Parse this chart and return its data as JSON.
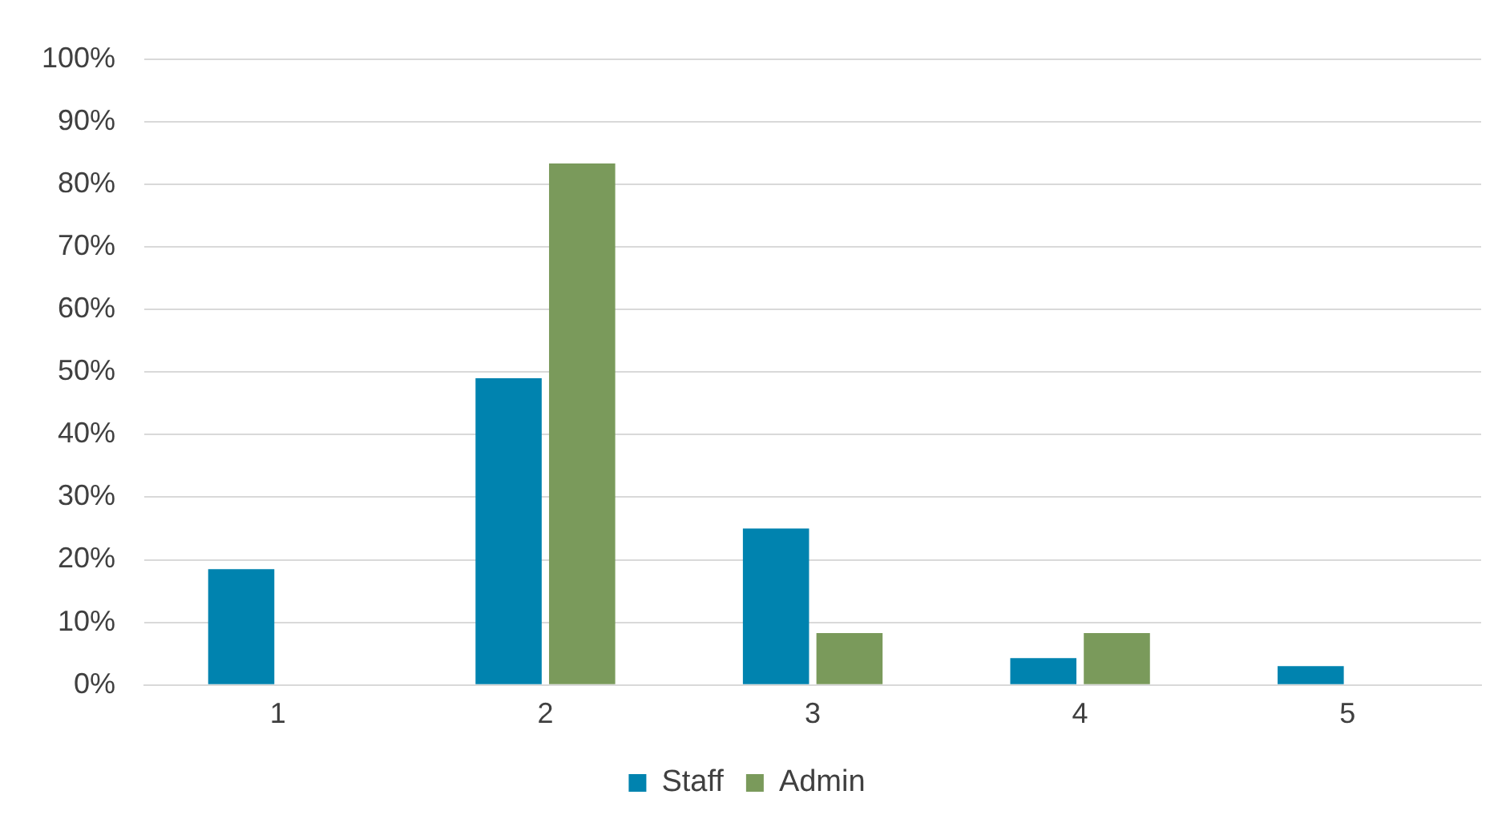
{
  "chart_data": {
    "type": "bar",
    "categories": [
      "1",
      "2",
      "3",
      "4",
      "5"
    ],
    "series": [
      {
        "name": "Staff",
        "color": "#0083af",
        "values": [
          18.5,
          49,
          25,
          4.3,
          3
        ]
      },
      {
        "name": "Admin",
        "color": "#7a9a5b",
        "values": [
          0,
          83.3,
          8.3,
          8.3,
          0
        ]
      }
    ],
    "ylim": [
      0,
      100
    ],
    "yticks": [
      {
        "value": 0,
        "label": "0%"
      },
      {
        "value": 10,
        "label": "10%"
      },
      {
        "value": 20,
        "label": "20%"
      },
      {
        "value": 30,
        "label": "30%"
      },
      {
        "value": 40,
        "label": "40%"
      },
      {
        "value": 50,
        "label": "50%"
      },
      {
        "value": 60,
        "label": "60%"
      },
      {
        "value": 70,
        "label": "70%"
      },
      {
        "value": 80,
        "label": "80%"
      },
      {
        "value": 90,
        "label": "90%"
      },
      {
        "value": 100,
        "label": "100%"
      }
    ],
    "grid": "y",
    "legend": "bottom"
  }
}
